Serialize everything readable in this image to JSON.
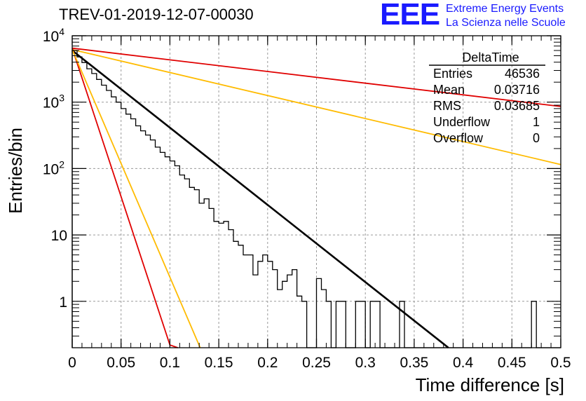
{
  "header": {
    "run_title": "TREV-01-2019-12-07-00030",
    "logo_mark": "EEE",
    "logo_line1": "Extreme Energy Events",
    "logo_line2": "La Scienza nelle Scuole"
  },
  "colors": {
    "histogram": "#000000",
    "fit": "#000000",
    "red_curves": "#e00000",
    "orange_curves": "#ffbb00",
    "logo": "#1a1aff"
  },
  "chart_data": {
    "type": "line",
    "title": "TREV-01-2019-12-07-00030",
    "xlabel": "Time difference [s]",
    "ylabel": "Entries/bin",
    "xlim": [
      0,
      0.5
    ],
    "ylim": [
      0.2,
      10000
    ],
    "yscale": "log",
    "grid": true,
    "x_ticks": [
      "0",
      "0.05",
      "0.1",
      "0.15",
      "0.2",
      "0.25",
      "0.3",
      "0.35",
      "0.4",
      "0.45",
      "0.5"
    ],
    "y_ticks": [
      {
        "value": 1,
        "label": "1"
      },
      {
        "value": 10,
        "label": "10"
      },
      {
        "value": 100,
        "label": "10^2"
      },
      {
        "value": 1000,
        "label": "10^3"
      },
      {
        "value": 10000,
        "label": "10^4"
      }
    ],
    "stats_box": {
      "title": "DeltaTime",
      "rows": [
        {
          "label": "Entries",
          "value": "46536"
        },
        {
          "label": "Mean",
          "value": "0.03716"
        },
        {
          "label": "RMS",
          "value": "0.03685"
        },
        {
          "label": "Underflow",
          "value": "1"
        },
        {
          "label": "Overflow",
          "value": "0"
        }
      ],
      "placement": "top-right"
    },
    "histogram": {
      "bin_width": 0.005,
      "x_start": 0,
      "values": [
        6000,
        4800,
        3950,
        3180,
        2700,
        2200,
        1800,
        1500,
        1200,
        1000,
        800,
        660,
        560,
        440,
        370,
        320,
        270,
        210,
        175,
        150,
        130,
        110,
        80,
        70,
        52,
        48,
        30,
        35,
        25,
        16,
        15,
        16,
        12,
        8,
        7,
        5,
        5,
        2.5,
        4,
        5,
        4,
        3,
        1.5,
        2,
        2.5,
        3,
        1.2,
        1,
        0.2,
        0.2,
        2.2,
        1.5,
        1,
        0.2,
        1,
        1,
        0.2,
        0.2,
        1,
        1,
        0.2,
        1,
        1,
        0.2,
        0.2,
        0.2,
        0.2,
        1,
        0.2,
        0.2,
        0.2,
        0.2,
        0.2,
        0.2,
        0.2,
        0.2,
        0.2,
        0.2,
        0.2,
        0.2,
        0.2,
        0.2,
        0.2,
        0.2,
        0.2,
        0.2,
        0.2,
        0.2,
        0.2,
        0.2,
        0.2,
        0.2,
        0.2,
        0.2,
        1,
        0.2,
        0.2,
        0.2,
        0.2,
        0.2
      ]
    },
    "series": [
      {
        "style": "fit",
        "color": "#000000",
        "x": [
          0,
          0.385
        ],
        "y": [
          6000,
          0.2
        ]
      },
      {
        "style": "envelope",
        "color": "#e00000",
        "x": [
          0,
          0.5
        ],
        "y": [
          6500,
          860
        ]
      },
      {
        "style": "envelope",
        "color": "#ffbb00",
        "x": [
          0,
          0.5
        ],
        "y": [
          6200,
          115
        ]
      },
      {
        "style": "envelope",
        "color": "#e00000",
        "x": [
          0,
          0.1,
          0.108
        ],
        "y": [
          6500,
          0.22,
          0.2
        ]
      },
      {
        "style": "envelope",
        "color": "#ffbb00",
        "x": [
          0,
          0.131
        ],
        "y": [
          6200,
          0.2
        ]
      }
    ]
  }
}
